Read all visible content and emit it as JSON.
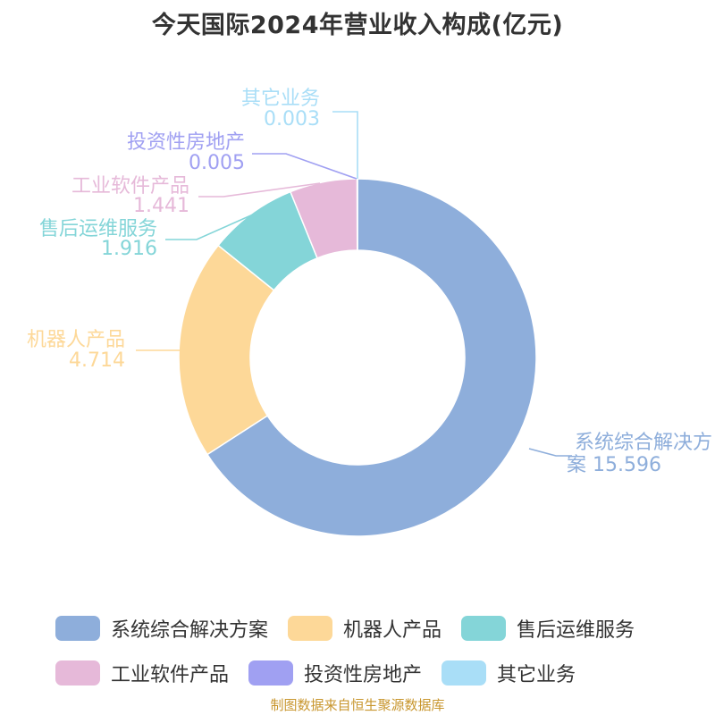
{
  "chart_data": {
    "type": "pie",
    "title": "今天国际2024年营业收入构成(亿元)",
    "categories": [
      "系统综合解决方案",
      "机器人产品",
      "售后运维服务",
      "工业软件产品",
      "投资性房地产",
      "其它业务"
    ],
    "values": [
      15.596,
      4.714,
      1.916,
      1.441,
      0.005,
      0.003
    ],
    "value_labels": [
      "15.596",
      "4.714",
      "1.916",
      "1.441",
      "0.005",
      "0.003"
    ],
    "colors": [
      "#8eaedb",
      "#fdd898",
      "#84d5d8",
      "#e6b9d9",
      "#a0a0f2",
      "#a9def7"
    ],
    "donut": true,
    "legend_position": "bottom",
    "start_angle": "top, clockwise"
  },
  "source": "制图数据来自恒生聚源数据库"
}
